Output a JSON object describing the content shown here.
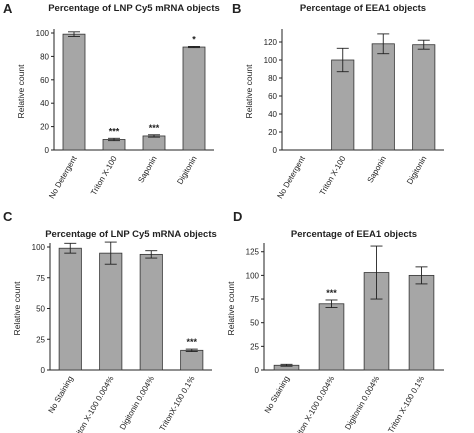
{
  "chart_data": [
    {
      "type": "bar",
      "panel": "A",
      "title": "Percentage of LNP Cy5 mRNA objects",
      "ylabel": "Relative count",
      "ylim": [
        0,
        100
      ],
      "yticks": [
        0,
        20,
        40,
        60,
        80,
        100
      ],
      "categories": [
        "No Detergent",
        "Triton X-100",
        "Saponin",
        "Digitonin"
      ],
      "values": [
        99,
        9,
        12,
        88
      ],
      "errors": [
        2,
        1,
        1,
        0.5
      ],
      "significance": [
        "",
        "***",
        "***",
        "*"
      ],
      "bar_color": "#a6a6a6"
    },
    {
      "type": "bar",
      "panel": "B",
      "title": "Percentage of EEA1 objects",
      "ylabel": "Relative count",
      "ylim": [
        0,
        130
      ],
      "yticks": [
        0,
        20,
        40,
        60,
        80,
        100,
        120
      ],
      "categories": [
        "No Detergent",
        "Triton X-100",
        "Saponin",
        "Digitonin"
      ],
      "values": [
        0,
        100,
        118,
        117
      ],
      "errors": [
        0,
        13,
        11,
        5
      ],
      "significance": [
        "",
        "",
        "",
        ""
      ],
      "bar_color": "#a6a6a6"
    },
    {
      "type": "bar",
      "panel": "C",
      "title": "Percentage of LNP Cy5 mRNA objects",
      "ylabel": "Relative count",
      "ylim": [
        0,
        100
      ],
      "yticks": [
        0,
        25,
        50,
        75,
        100
      ],
      "categories": [
        "No Staining",
        "Triton X-100 0.004%",
        "Digitonin 0.004%",
        "TritonX-100 0.1%"
      ],
      "values": [
        99,
        95,
        94,
        16
      ],
      "errors": [
        4,
        9,
        3,
        1
      ],
      "significance": [
        "",
        "",
        "",
        "***"
      ],
      "bar_color": "#a6a6a6"
    },
    {
      "type": "bar",
      "panel": "D",
      "title": "Percentage of EEA1 objects",
      "ylabel": "Relative count",
      "ylim": [
        0,
        130
      ],
      "yticks": [
        0,
        25,
        50,
        75,
        100,
        125
      ],
      "categories": [
        "No Staining",
        "Triton X-100 0.004%",
        "Digitonin 0.004%",
        "Triton X-100 0.1%"
      ],
      "values": [
        5,
        70,
        103,
        100
      ],
      "errors": [
        1,
        4,
        28,
        9
      ],
      "significance": [
        "",
        "***",
        "",
        ""
      ],
      "bar_color": "#a6a6a6"
    }
  ]
}
